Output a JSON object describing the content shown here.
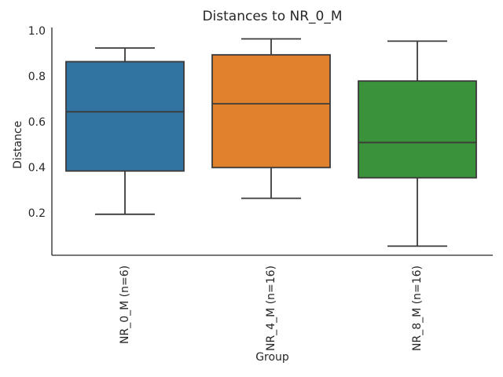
{
  "figure": {
    "title": "Distances to NR_0_M",
    "xlabel": "Group",
    "ylabel": "Distance"
  },
  "chart_data": {
    "type": "box",
    "title": "Distances to NR_0_M",
    "xlabel": "Group",
    "ylabel": "Distance",
    "categories": [
      "NR_0_M (n=6)",
      "NR_4_M (n=16)",
      "NR_8_M (n=16)"
    ],
    "series": [
      {
        "name": "NR_0_M (n=6)",
        "color": "#3274A1",
        "whisker_low": 0.2,
        "q1": 0.39,
        "median": 0.65,
        "q3": 0.87,
        "whisker_high": 0.93
      },
      {
        "name": "NR_4_M (n=16)",
        "color": "#E1812C",
        "whisker_low": 0.27,
        "q1": 0.405,
        "median": 0.685,
        "q3": 0.9,
        "whisker_high": 0.97
      },
      {
        "name": "NR_8_M (n=16)",
        "color": "#3A923A",
        "whisker_low": 0.06,
        "q1": 0.36,
        "median": 0.515,
        "q3": 0.785,
        "whisker_high": 0.96
      }
    ],
    "y_ticks": [
      0.2,
      0.4,
      0.6,
      0.8,
      1.0
    ],
    "y_tick_labels": [
      "0.2",
      "0.4",
      "0.6",
      "0.8",
      "1.0"
    ],
    "ylim": [
      0.02,
      1.02
    ],
    "grid": false,
    "legend_position": "none",
    "colors": {
      "box_line": "#3A3A3A",
      "spine": "#262626",
      "text": "#262626",
      "background": "#FFFFFF"
    }
  }
}
